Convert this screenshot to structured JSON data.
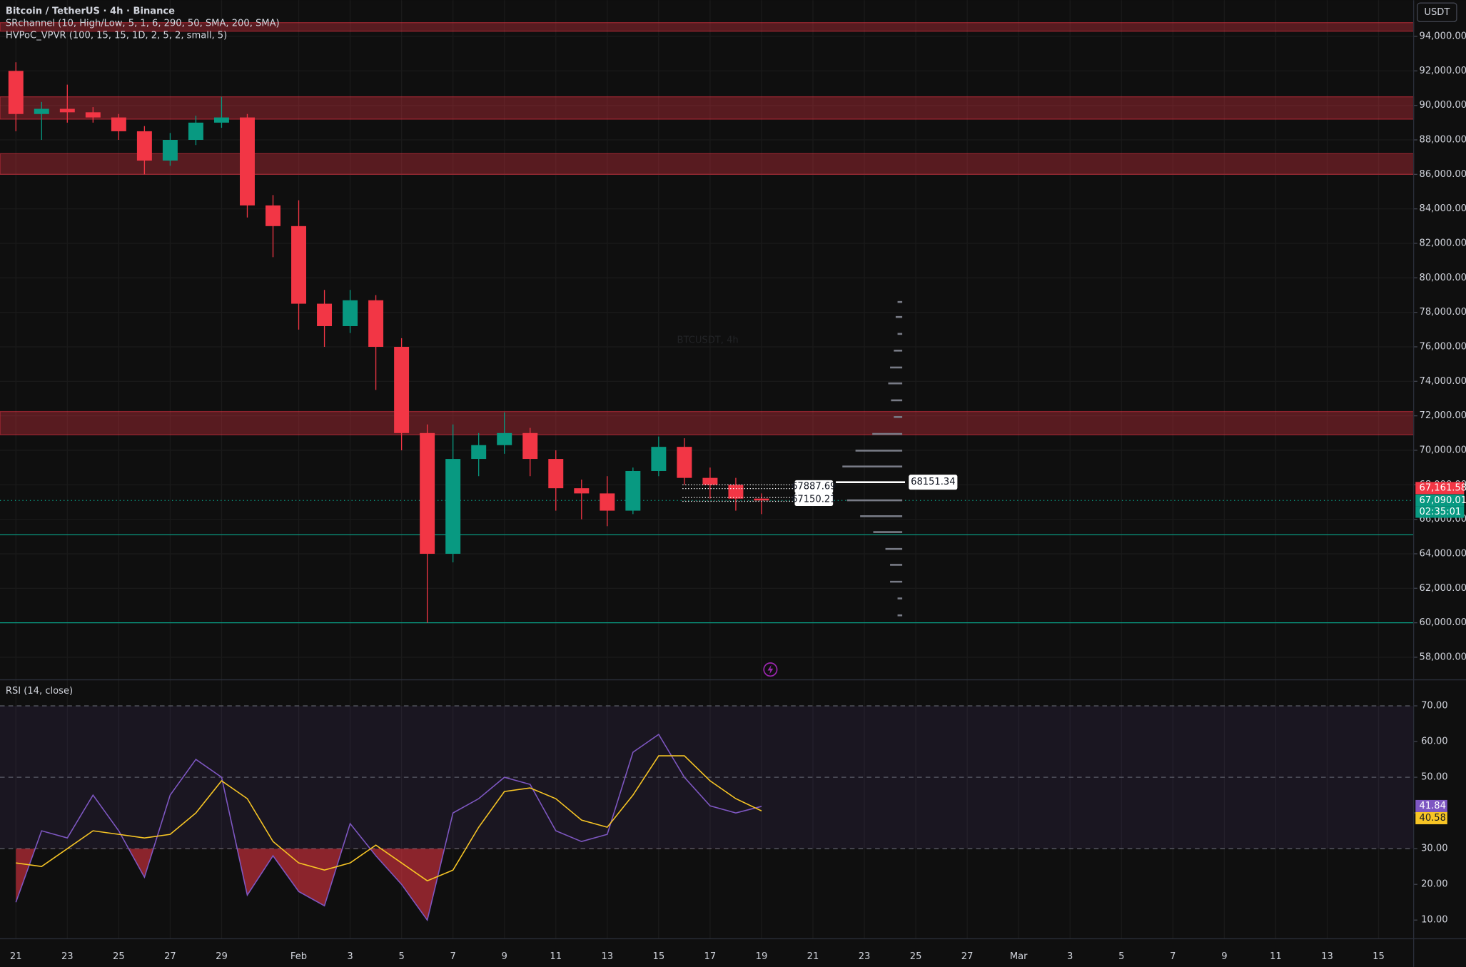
{
  "chart_data": [
    {
      "type": "candlestick",
      "title": "Bitcoin / TetherUS · 4h · Binance",
      "indicators": [
        "SRchannel (10, High/Low, 5, 1, 6, 290, 50, SMA, 200, SMA)",
        "HVPoC_VPVR (100, 15, 15, 1D, 2, 5, 2, small, 5)"
      ],
      "watermark": "BTCUSDT, 4h",
      "currency": "USDT",
      "x": [
        "Jan 21",
        "Jan 22",
        "Jan 23",
        "Jan 24",
        "Jan 25",
        "Jan 26",
        "Jan 27",
        "Jan 28",
        "Jan 29",
        "Jan 30",
        "Jan 31",
        "Feb 1",
        "Feb 2",
        "Feb 3",
        "Feb 4",
        "Feb 5",
        "Feb 6",
        "Feb 7",
        "Feb 8",
        "Feb 9",
        "Feb 10",
        "Feb 11",
        "Feb 12",
        "Feb 13",
        "Feb 14",
        "Feb 15",
        "Feb 16",
        "Feb 17",
        "Feb 18",
        "Feb 19"
      ],
      "open": [
        92000,
        89500,
        89800,
        89600,
        89300,
        88500,
        86800,
        88000,
        89000,
        89300,
        84200,
        83000,
        78500,
        77200,
        78700,
        76000,
        71000,
        64000,
        69500,
        70300,
        71000,
        69500,
        67800,
        67500,
        66500,
        68800,
        70200,
        68400,
        68000,
        67200
      ],
      "high": [
        92500,
        90200,
        91200,
        89900,
        89500,
        88800,
        88400,
        89400,
        90500,
        89500,
        84800,
        84500,
        79300,
        79300,
        79000,
        76500,
        71500,
        71500,
        71000,
        72200,
        71300,
        70000,
        68300,
        68500,
        69000,
        70800,
        70700,
        69000,
        68400,
        67500
      ],
      "low": [
        88500,
        88000,
        89000,
        89000,
        88000,
        86000,
        86500,
        87700,
        88700,
        83500,
        81200,
        77000,
        76000,
        76800,
        73500,
        70000,
        60000,
        63500,
        68500,
        69800,
        68500,
        66500,
        66000,
        65600,
        66300,
        68500,
        68000,
        67200,
        66500,
        66300
      ],
      "close": [
        89500,
        89800,
        89600,
        89300,
        88500,
        86800,
        88000,
        89000,
        89300,
        84200,
        83000,
        78500,
        77200,
        78700,
        76000,
        71000,
        64000,
        69500,
        70300,
        71000,
        69500,
        67800,
        67500,
        66500,
        68800,
        70200,
        68400,
        68000,
        67200,
        67090.01
      ],
      "up_color": "#089981",
      "down_color": "#f23645",
      "ylim": [
        56800,
        96100
      ],
      "yticks": [
        {
          "value": 58000,
          "label": "58,000.00"
        },
        {
          "value": 60000,
          "label": "60,000.00"
        },
        {
          "value": 62000,
          "label": "62,000.00"
        },
        {
          "value": 64000,
          "label": "64,000.00"
        },
        {
          "value": 66000,
          "label": "66,000.00"
        },
        {
          "value": 68000,
          "label": "68,000.00"
        },
        {
          "value": 70000,
          "label": "70,000.00"
        },
        {
          "value": 72000,
          "label": "72,000.00"
        },
        {
          "value": 74000,
          "label": "74,000.00"
        },
        {
          "value": 76000,
          "label": "76,000.00"
        },
        {
          "value": 78000,
          "label": "78,000.00"
        },
        {
          "value": 80000,
          "label": "80,000.00"
        },
        {
          "value": 82000,
          "label": "82,000.00"
        },
        {
          "value": 84000,
          "label": "84,000.00"
        },
        {
          "value": 86000,
          "label": "86,000.00"
        },
        {
          "value": 88000,
          "label": "88,000.00"
        },
        {
          "value": 90000,
          "label": "90,000.00"
        },
        {
          "value": 92000,
          "label": "92,000.00"
        },
        {
          "value": 94000,
          "label": "94,000.00"
        }
      ],
      "grid": true,
      "sr_zones": [
        [
          94300,
          94800
        ],
        [
          89200,
          90500
        ],
        [
          86000,
          87200
        ],
        [
          70900,
          72250
        ]
      ],
      "zone_color": "rgba(242,54,69,0.32)",
      "support_lines": [
        65100,
        60000
      ],
      "line_color": "#089981",
      "price_labels": [
        {
          "value": 67161.58,
          "label": "67,161.58",
          "color": "#f23645"
        },
        {
          "value": 67090.01,
          "label": "67,090.01",
          "color": "#089981"
        }
      ],
      "countdown": "02:35:01",
      "volume_profile": {
        "levels": [
          78600,
          77730,
          76750,
          75780,
          74800,
          73880,
          72900,
          71930,
          70950,
          69980,
          69060,
          67100,
          66180,
          65260,
          64280,
          63360,
          62380,
          61410,
          60430
        ],
        "volumes": [
          5,
          7,
          5,
          9,
          13,
          15,
          12,
          9,
          32,
          50,
          64,
          59,
          45,
          31,
          18,
          13,
          13,
          5,
          5
        ],
        "color": "#787b86",
        "poc": 68151.34,
        "poc_volume": 71,
        "marked_levels": [
          67887.69,
          67150.21
        ]
      }
    },
    {
      "type": "line",
      "title": "RSI (14, close)",
      "x": [
        "Jan 21",
        "Jan 22",
        "Jan 23",
        "Jan 24",
        "Jan 25",
        "Jan 26",
        "Jan 27",
        "Jan 28",
        "Jan 29",
        "Jan 30",
        "Jan 31",
        "Feb 1",
        "Feb 2",
        "Feb 3",
        "Feb 4",
        "Feb 5",
        "Feb 6",
        "Feb 7",
        "Feb 8",
        "Feb 9",
        "Feb 10",
        "Feb 11",
        "Feb 12",
        "Feb 13",
        "Feb 14",
        "Feb 15",
        "Feb 16",
        "Feb 17",
        "Feb 18",
        "Feb 19"
      ],
      "series": [
        {
          "color": "#7e57c2",
          "values": [
            15,
            35,
            33,
            45,
            35,
            22,
            45,
            55,
            50,
            17,
            28,
            18,
            14,
            37,
            28,
            20,
            10,
            40,
            44,
            50,
            48,
            35,
            32,
            34,
            57,
            62,
            50,
            42,
            40,
            41.84
          ]
        },
        {
          "color": "#f7c525",
          "values": [
            26,
            25,
            30,
            35,
            34,
            33,
            34,
            40,
            49,
            44,
            32,
            26,
            24,
            26,
            31,
            26,
            21,
            24,
            36,
            46,
            47,
            44,
            38,
            36,
            45,
            56,
            56,
            49,
            44,
            40.58
          ]
        }
      ],
      "ylim": [
        4.5,
        76.5
      ],
      "yticks": [
        {
          "value": 10,
          "label": "10.00"
        },
        {
          "value": 20,
          "label": "20.00"
        },
        {
          "value": 30,
          "label": "30.00"
        },
        {
          "value": 40,
          "label": "40.00"
        },
        {
          "value": 50,
          "label": "50.00"
        },
        {
          "value": 60,
          "label": "60.00"
        },
        {
          "value": 70,
          "label": "70.00"
        }
      ],
      "bands": [
        30,
        70
      ],
      "midline": 50,
      "xticks": [
        {
          "value": "Jan 21",
          "label": "21"
        },
        {
          "value": "Jan 23",
          "label": "23"
        },
        {
          "value": "Jan 25",
          "label": "25"
        },
        {
          "value": "Jan 27",
          "label": "27"
        },
        {
          "value": "Jan 29",
          "label": "29"
        },
        {
          "value": "Feb 1",
          "label": "Feb"
        },
        {
          "value": "Feb 3",
          "label": "3"
        },
        {
          "value": "Feb 5",
          "label": "5"
        },
        {
          "value": "Feb 7",
          "label": "7"
        },
        {
          "value": "Feb 9",
          "label": "9"
        },
        {
          "value": "Feb 11",
          "label": "11"
        },
        {
          "value": "Feb 13",
          "label": "13"
        },
        {
          "value": "Feb 15",
          "label": "15"
        },
        {
          "value": "Feb 17",
          "label": "17"
        },
        {
          "value": "Feb 19",
          "label": "19"
        },
        {
          "value": "Feb 21",
          "label": "21"
        },
        {
          "value": "Feb 23",
          "label": "23"
        },
        {
          "value": "Feb 25",
          "label": "25"
        },
        {
          "value": "Feb 27",
          "label": "27"
        },
        {
          "value": "Mar 1",
          "label": "Mar"
        },
        {
          "value": "Mar 3",
          "label": "3"
        },
        {
          "value": "Mar 5",
          "label": "5"
        },
        {
          "value": "Mar 7",
          "label": "7"
        },
        {
          "value": "Mar 9",
          "label": "9"
        },
        {
          "value": "Mar 11",
          "label": "11"
        },
        {
          "value": "Mar 13",
          "label": "13"
        },
        {
          "value": "Mar 15",
          "label": "15"
        }
      ]
    }
  ]
}
